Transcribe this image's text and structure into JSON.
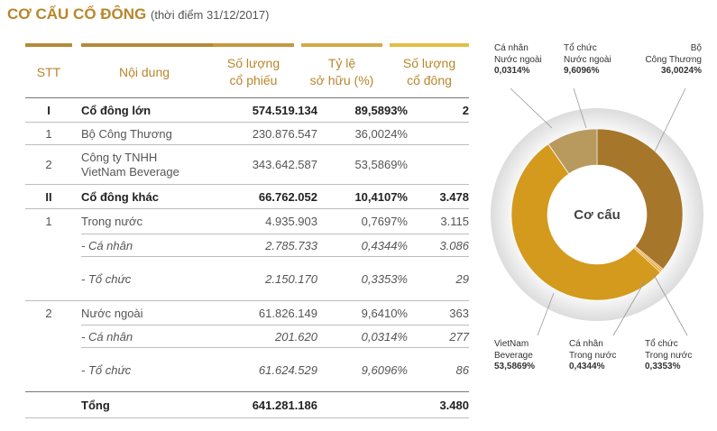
{
  "title": "CƠ CẤU CỔ ĐÔNG",
  "subtitle": "(thời điểm 31/12/2017)",
  "headers": {
    "stt": "STT",
    "noidung": "Nội dung",
    "soluong_cp_1": "Số lượng",
    "soluong_cp_2": "cổ phiếu",
    "tyle_1": "Tỷ lệ",
    "tyle_2": "sở hữu (%)",
    "soluong_cd_1": "Số lượng",
    "soluong_cd_2": "cổ đông"
  },
  "rows": [
    {
      "stt": "I",
      "noidung": "Cổ đông lớn",
      "shares": "574.519.134",
      "pct": "89,5893%",
      "holders": "2"
    },
    {
      "stt": "1",
      "noidung": "Bộ Công Thương",
      "shares": "230.876.547",
      "pct": "36,0024%",
      "holders": ""
    },
    {
      "stt": "2",
      "noidung_1": "Công ty TNHH",
      "noidung_2": "VietNam Beverage",
      "shares": "343.642.587",
      "pct": "53,5869%",
      "holders": ""
    },
    {
      "stt": "II",
      "noidung": "Cổ đông khác",
      "shares": "66.762.052",
      "pct": "10,4107%",
      "holders": "3.478"
    },
    {
      "stt": "1",
      "noidung": "Trong nước",
      "shares": "4.935.903",
      "pct": "0,7697%",
      "holders": "3.115"
    },
    {
      "stt": "",
      "noidung": "- Cá nhân",
      "shares": "2.785.733",
      "pct": "0,4344%",
      "holders": "3.086"
    },
    {
      "stt": "",
      "noidung": "- Tổ chức",
      "shares": "2.150.170",
      "pct": "0,3353%",
      "holders": "29"
    },
    {
      "stt": "2",
      "noidung": "Nước ngoài",
      "shares": "61.826.149",
      "pct": "9,6410%",
      "holders": "363"
    },
    {
      "stt": "",
      "noidung": "- Cá nhân",
      "shares": "201.620",
      "pct": "0,0314%",
      "holders": "277"
    },
    {
      "stt": "",
      "noidung": "- Tổ chức",
      "shares": "61.624.529",
      "pct": "9,6096%",
      "holders": "86"
    }
  ],
  "total": {
    "label": "Tổng",
    "shares": "641.281.186",
    "holders": "3.480"
  },
  "chart_data": {
    "type": "pie",
    "title": "Cơ cấu",
    "slices": [
      {
        "name": "Bộ Công Thương",
        "value": 36.0024,
        "color": "#a6762a"
      },
      {
        "name": "Tổ chức Trong nước",
        "value": 0.3353,
        "color": "#d7a243"
      },
      {
        "name": "Cá nhân Trong nước",
        "value": 0.4344,
        "color": "#f0a21a"
      },
      {
        "name": "VietNam Beverage",
        "value": 53.5869,
        "color": "#d39a1d"
      },
      {
        "name": "Cá nhân Nước ngoài",
        "value": 0.0314,
        "color": "#c9a45a"
      },
      {
        "name": "Tổ chức Nước ngoài",
        "value": 9.6096,
        "color": "#b89a5f"
      }
    ],
    "labels": {
      "cn_nn_1": "Cá nhân",
      "cn_nn_2": "Nước ngoài",
      "cn_nn_v": "0,0314%",
      "tc_nn_1": "Tổ chức",
      "tc_nn_2": "Nước ngoài",
      "tc_nn_v": "9,6096%",
      "bct_1": "Bộ",
      "bct_2": "Công Thương",
      "bct_v": "36,0024%",
      "vnb_1": "VietNam",
      "vnb_2": "Beverage",
      "vnb_v": "53,5869%",
      "cn_tn_1": "Cá nhân",
      "cn_tn_2": "Trong nước",
      "cn_tn_v": "0,4344%",
      "tc_tn_1": "Tổ chức",
      "tc_tn_2": "Trong nước",
      "tc_tn_v": "0,3353%"
    }
  }
}
